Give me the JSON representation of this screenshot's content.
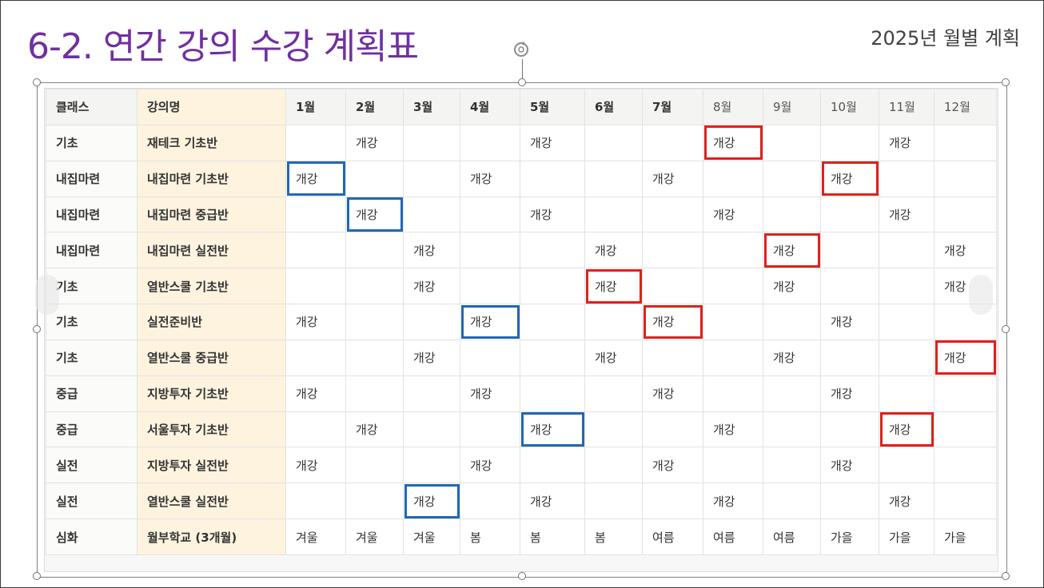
{
  "slide": {
    "title": "6-2. 연간 강의 수강 계획표",
    "subtitle": "2025년 월별 계획"
  },
  "table": {
    "headers": [
      "클래스",
      "강의명",
      "1월",
      "2월",
      "3월",
      "4월",
      "5월",
      "6월",
      "7월",
      "8월",
      "9월",
      "10월",
      "11월",
      "12월"
    ],
    "rows": [
      {
        "class": "기초",
        "name": "재테크 기초반",
        "months": [
          "",
          "개강",
          "",
          "",
          "개강",
          "",
          "",
          "개강",
          "",
          "",
          "개강",
          ""
        ],
        "red": [
          7
        ],
        "blue": []
      },
      {
        "class": "내집마련",
        "name": "내집마련 기초반",
        "months": [
          "개강",
          "",
          "",
          "개강",
          "",
          "",
          "개강",
          "",
          "",
          "개강",
          "",
          ""
        ],
        "red": [
          9
        ],
        "blue": [
          0
        ]
      },
      {
        "class": "내집마련",
        "name": "내집마련 중급반",
        "months": [
          "",
          "개강",
          "",
          "",
          "개강",
          "",
          "",
          "개강",
          "",
          "",
          "개강",
          ""
        ],
        "red": [],
        "blue": [
          1
        ]
      },
      {
        "class": "내집마련",
        "name": "내집마련 실전반",
        "months": [
          "",
          "",
          "개강",
          "",
          "",
          "개강",
          "",
          "",
          "개강",
          "",
          "",
          "개강"
        ],
        "red": [
          8
        ],
        "blue": []
      },
      {
        "class": "기초",
        "name": "열반스쿨 기초반",
        "months": [
          "",
          "",
          "개강",
          "",
          "",
          "개강",
          "",
          "",
          "개강",
          "",
          "",
          "개강"
        ],
        "red": [
          5
        ],
        "blue": []
      },
      {
        "class": "기초",
        "name": "실전준비반",
        "months": [
          "개강",
          "",
          "",
          "개강",
          "",
          "",
          "개강",
          "",
          "",
          "개강",
          "",
          ""
        ],
        "red": [
          6
        ],
        "blue": [
          3
        ]
      },
      {
        "class": "기초",
        "name": "열반스쿨 중급반",
        "months": [
          "",
          "",
          "개강",
          "",
          "",
          "개강",
          "",
          "",
          "개강",
          "",
          "",
          "개강"
        ],
        "red": [
          11
        ],
        "blue": []
      },
      {
        "class": "중급",
        "name": "지방투자 기초반",
        "months": [
          "개강",
          "",
          "",
          "개강",
          "",
          "",
          "개강",
          "",
          "",
          "개강",
          "",
          ""
        ],
        "red": [],
        "blue": []
      },
      {
        "class": "중급",
        "name": "서울투자 기초반",
        "months": [
          "",
          "개강",
          "",
          "",
          "개강",
          "",
          "",
          "개강",
          "",
          "",
          "개강",
          ""
        ],
        "red": [
          10
        ],
        "blue": [
          4
        ]
      },
      {
        "class": "실전",
        "name": "지방투자 실전반",
        "months": [
          "개강",
          "",
          "",
          "개강",
          "",
          "",
          "개강",
          "",
          "",
          "개강",
          "",
          ""
        ],
        "red": [],
        "blue": []
      },
      {
        "class": "실전",
        "name": "열반스쿨 실전반",
        "months": [
          "",
          "",
          "개강",
          "",
          "개강",
          "",
          "",
          "개강",
          "",
          "",
          "개강",
          ""
        ],
        "red": [],
        "blue": [
          2
        ]
      },
      {
        "class": "심화",
        "name": "월부학교 (3개월)",
        "months": [
          "겨울",
          "겨울",
          "겨울",
          "봄",
          "봄",
          "봄",
          "여름",
          "여름",
          "여름",
          "가을",
          "가을",
          "가을"
        ],
        "red": [],
        "blue": []
      }
    ]
  },
  "colors": {
    "title": "#7030a0",
    "highlight_red": "#e0201c",
    "highlight_blue": "#2068b4",
    "name_column": "#fdf3df"
  },
  "icons": {
    "rotate_handle": "rotate-icon"
  }
}
